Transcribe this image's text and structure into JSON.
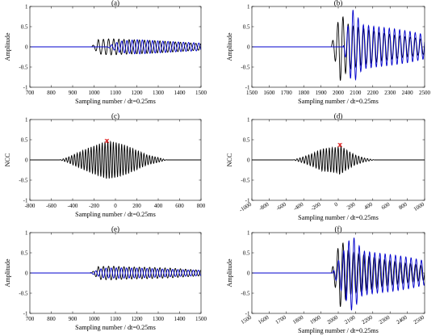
{
  "chart_data": [
    {
      "type": "line",
      "title": "(a)",
      "xlabel": "Sampling number / dt=0.25ms",
      "ylabel": "Amplitude",
      "xlim": [
        700,
        1500
      ],
      "ylim": [
        -1,
        1
      ],
      "xticks": [
        700,
        800,
        900,
        1000,
        1100,
        1200,
        1300,
        1400,
        1500
      ],
      "xtick_labels": [
        "700",
        "800",
        "900",
        "1000",
        "1100",
        "1200",
        "1300",
        "1400",
        "1500"
      ],
      "yticks": [
        -1,
        -0.5,
        0,
        0.5,
        1
      ],
      "ytick_labels": [
        "-1",
        "-0.5",
        "0",
        "0.5",
        "1"
      ],
      "xtick_rotate": false,
      "series": [
        {
          "color": "#000000",
          "wave": {
            "start": 990,
            "period": 24,
            "phase": 0,
            "peaks": [
              [
                1000,
                0.04
              ],
              [
                1020,
                0.18
              ],
              [
                1080,
                0.2
              ],
              [
                1160,
                0.18
              ],
              [
                1260,
                0.16
              ],
              [
                1360,
                0.13
              ],
              [
                1440,
                0.1
              ],
              [
                1500,
                0.08
              ]
            ]
          }
        },
        {
          "color": "#0000cc",
          "wave": {
            "start": 1060,
            "period": 24,
            "phase": 8,
            "peaks": [
              [
                1060,
                0.0
              ],
              [
                1120,
                0.14
              ],
              [
                1200,
                0.18
              ],
              [
                1300,
                0.15
              ],
              [
                1400,
                0.12
              ],
              [
                1480,
                0.1
              ],
              [
                1500,
                0.09
              ]
            ]
          }
        }
      ]
    },
    {
      "type": "line",
      "title": "(b)",
      "xlabel": "Sampling number / dt=0.25ms",
      "ylabel": "Amplitude",
      "xlim": [
        1500,
        2500
      ],
      "ylim": [
        -1,
        1
      ],
      "xticks": [
        1500,
        1600,
        1700,
        1800,
        1900,
        2000,
        2100,
        2200,
        2300,
        2400,
        2500
      ],
      "xtick_labels": [
        "1500",
        "1600",
        "1700",
        "1800",
        "1900",
        "2000",
        "2100",
        "2200",
        "2300",
        "2400",
        "2500"
      ],
      "yticks": [
        -1,
        -0.5,
        0,
        0.5,
        1
      ],
      "ytick_labels": [
        "-1",
        "-0.5",
        "0",
        "0.5",
        "1"
      ],
      "xtick_rotate": false,
      "series": [
        {
          "color": "#000000",
          "wave": {
            "start": 1960,
            "period": 30,
            "phase": 0,
            "peaks": [
              [
                1960,
                0.05
              ],
              [
                1990,
                0.45
              ],
              [
                2010,
                0.85
              ],
              [
                2060,
                0.55
              ],
              [
                2150,
                0.45
              ],
              [
                2250,
                0.35
              ],
              [
                2350,
                0.28
              ],
              [
                2450,
                0.22
              ],
              [
                2500,
                0.18
              ]
            ]
          }
        },
        {
          "color": "#0000cc",
          "wave": {
            "start": 2030,
            "period": 30,
            "phase": 12,
            "peaks": [
              [
                2030,
                0.05
              ],
              [
                2080,
                0.95
              ],
              [
                2140,
                0.55
              ],
              [
                2220,
                0.5
              ],
              [
                2320,
                0.45
              ],
              [
                2420,
                0.38
              ],
              [
                2500,
                0.3
              ]
            ]
          }
        }
      ]
    },
    {
      "type": "line",
      "title": "(c)",
      "xlabel": "Sampling number / dt=0.25ms",
      "ylabel": "NCC",
      "xlim": [
        -800,
        800
      ],
      "ylim": [
        -1,
        1
      ],
      "xticks": [
        -800,
        -600,
        -400,
        -200,
        0,
        200,
        400,
        600,
        800
      ],
      "xtick_labels": [
        "-800",
        "-600",
        "-400",
        "-200",
        "0",
        "200",
        "400",
        "600",
        "800"
      ],
      "yticks": [
        -1,
        -0.5,
        0,
        0.5,
        1
      ],
      "ytick_labels": [
        "-1",
        "-0.5",
        "0",
        "0.5",
        "1"
      ],
      "xtick_rotate": false,
      "marker": {
        "x": -80,
        "y": 0.47,
        "color": "#e02020"
      },
      "series": [
        {
          "color": "#000000",
          "wave": {
            "start": -520,
            "period": 26,
            "phase": 0,
            "peaks": [
              [
                -520,
                0.0
              ],
              [
                -450,
                0.06
              ],
              [
                -350,
                0.18
              ],
              [
                -250,
                0.3
              ],
              [
                -150,
                0.4
              ],
              [
                -80,
                0.47
              ],
              [
                0,
                0.44
              ],
              [
                100,
                0.36
              ],
              [
                200,
                0.24
              ],
              [
                300,
                0.12
              ],
              [
                400,
                0.06
              ],
              [
                480,
                0.0
              ]
            ]
          }
        }
      ]
    },
    {
      "type": "line",
      "title": "(d)",
      "xlabel": "Sampling number / dt=0.25ms",
      "ylabel": "NCC",
      "xlim": [
        -1000,
        1000
      ],
      "ylim": [
        -1,
        1
      ],
      "xticks": [
        -1000,
        -800,
        -600,
        -400,
        -200,
        0,
        200,
        400,
        600,
        800,
        1000
      ],
      "xtick_labels": [
        "-1000",
        "-800",
        "-600",
        "-400",
        "-200",
        "0",
        "200",
        "400",
        "600",
        "800",
        "1000"
      ],
      "yticks": [
        -1,
        -0.5,
        0,
        0.5,
        1
      ],
      "ytick_labels": [
        "-1",
        "-0.5",
        "0",
        "0.5",
        "1"
      ],
      "xtick_rotate": true,
      "marker": {
        "x": 20,
        "y": 0.37,
        "color": "#e02020"
      },
      "series": [
        {
          "color": "#000000",
          "wave": {
            "start": -520,
            "period": 34,
            "phase": 0,
            "peaks": [
              [
                -520,
                0.0
              ],
              [
                -400,
                0.08
              ],
              [
                -300,
                0.16
              ],
              [
                -180,
                0.28
              ],
              [
                -100,
                0.3
              ],
              [
                0,
                0.32
              ],
              [
                20,
                0.37
              ],
              [
                100,
                0.24
              ],
              [
                200,
                0.12
              ],
              [
                300,
                0.05
              ],
              [
                420,
                0.0
              ]
            ]
          }
        }
      ]
    },
    {
      "type": "line",
      "title": "(e)",
      "xlabel": "Sampling number / dt=0.25ms",
      "ylabel": "Amplitude",
      "xlim": [
        700,
        1500
      ],
      "ylim": [
        -1,
        1
      ],
      "xticks": [
        700,
        800,
        900,
        1000,
        1100,
        1200,
        1300,
        1400,
        1500
      ],
      "xtick_labels": [
        "700",
        "800",
        "900",
        "1000",
        "1100",
        "1200",
        "1300",
        "1400",
        "1500"
      ],
      "yticks": [
        -1,
        -0.5,
        0,
        0.5,
        1
      ],
      "ytick_labels": [
        "-1",
        "-0.5",
        "0",
        "0.5",
        "1"
      ],
      "xtick_rotate": false,
      "series": [
        {
          "color": "#000000",
          "wave": {
            "start": 990,
            "period": 24,
            "phase": 0,
            "peaks": [
              [
                1000,
                0.04
              ],
              [
                1020,
                0.16
              ],
              [
                1080,
                0.17
              ],
              [
                1160,
                0.15
              ],
              [
                1260,
                0.14
              ],
              [
                1360,
                0.12
              ],
              [
                1440,
                0.09
              ],
              [
                1500,
                0.07
              ]
            ]
          }
        },
        {
          "color": "#0000cc",
          "wave": {
            "start": 980,
            "period": 24,
            "phase": 2,
            "peaks": [
              [
                980,
                0.0
              ],
              [
                1040,
                0.12
              ],
              [
                1120,
                0.13
              ],
              [
                1220,
                0.12
              ],
              [
                1320,
                0.1
              ],
              [
                1420,
                0.08
              ],
              [
                1500,
                0.07
              ]
            ]
          }
        }
      ]
    },
    {
      "type": "line",
      "title": "(f)",
      "xlabel": "Sampling number / dt=0.25ms",
      "ylabel": "Amplitude",
      "xlim": [
        1500,
        2500
      ],
      "ylim": [
        -1,
        1
      ],
      "xticks": [
        1500,
        1600,
        1700,
        1800,
        1900,
        2000,
        2100,
        2200,
        2300,
        2400,
        2500
      ],
      "xtick_labels": [
        "1500",
        "1600",
        "1700",
        "1800",
        "1900",
        "2000",
        "2100",
        "2200",
        "2300",
        "2400",
        "2500"
      ],
      "yticks": [
        -1,
        -0.5,
        0,
        0.5,
        1
      ],
      "ytick_labels": [
        "-1",
        "-0.5",
        "0",
        "0.5",
        "1"
      ],
      "xtick_rotate": true,
      "series": [
        {
          "color": "#000000",
          "wave": {
            "start": 1960,
            "period": 30,
            "phase": 0,
            "peaks": [
              [
                1960,
                0.05
              ],
              [
                1990,
                0.45
              ],
              [
                2010,
                0.85
              ],
              [
                2060,
                0.55
              ],
              [
                2150,
                0.45
              ],
              [
                2250,
                0.35
              ],
              [
                2350,
                0.28
              ],
              [
                2450,
                0.22
              ],
              [
                2500,
                0.18
              ]
            ]
          }
        },
        {
          "color": "#0000cc",
          "wave": {
            "start": 1970,
            "period": 30,
            "phase": 6,
            "peaks": [
              [
                1970,
                0.04
              ],
              [
                2010,
                0.38
              ],
              [
                2080,
                0.95
              ],
              [
                2140,
                0.55
              ],
              [
                2220,
                0.5
              ],
              [
                2320,
                0.45
              ],
              [
                2420,
                0.38
              ],
              [
                2500,
                0.3
              ]
            ]
          }
        }
      ]
    }
  ]
}
